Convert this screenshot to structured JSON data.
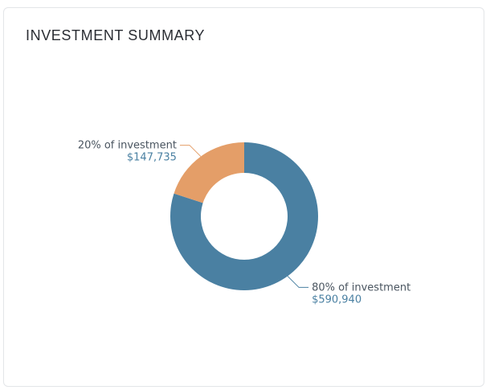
{
  "card": {
    "title": "INVESTMENT SUMMARY"
  },
  "chart_data": {
    "type": "pie",
    "donut": true,
    "title": "INVESTMENT SUMMARY",
    "slices": [
      {
        "label": "80% of investment",
        "value": 590940,
        "value_label": "$590,940",
        "percent": 80,
        "color": "#4a80a2"
      },
      {
        "label": "20% of investment",
        "value": 147735,
        "value_label": "$147,735",
        "percent": 20,
        "color": "#e49e68"
      }
    ],
    "legend": "none"
  }
}
